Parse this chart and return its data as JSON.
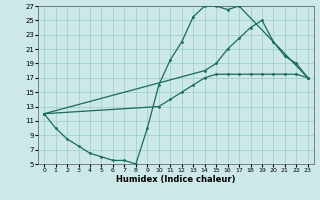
{
  "xlabel": "Humidex (Indice chaleur)",
  "ylabel": "",
  "xlim": [
    -0.5,
    23.5
  ],
  "ylim": [
    5,
    27
  ],
  "xticks": [
    0,
    1,
    2,
    3,
    4,
    5,
    6,
    7,
    8,
    9,
    10,
    11,
    12,
    13,
    14,
    15,
    16,
    17,
    18,
    19,
    20,
    21,
    22,
    23
  ],
  "yticks": [
    5,
    7,
    9,
    11,
    13,
    15,
    17,
    19,
    21,
    23,
    25,
    27
  ],
  "bg_color": "#cce8e8",
  "grid_color": "#99cccc",
  "line_color": "#1a6b5a",
  "curve1_x": [
    0,
    1,
    2,
    3,
    4,
    5,
    6,
    7,
    8,
    9,
    10,
    11,
    12,
    13,
    14,
    15,
    16,
    17,
    23
  ],
  "curve1_y": [
    12,
    10,
    8.5,
    7.5,
    6.5,
    6,
    5.5,
    5.5,
    5,
    10,
    16,
    19.5,
    22,
    25.5,
    27,
    27,
    26.5,
    27,
    17
  ],
  "curve2_x": [
    0,
    14,
    15,
    16,
    17,
    18,
    19,
    20,
    21,
    22,
    23
  ],
  "curve2_y": [
    12,
    18,
    19,
    21,
    22.5,
    24,
    25,
    22,
    20,
    19,
    17
  ],
  "curve3_x": [
    0,
    10,
    11,
    12,
    13,
    14,
    15,
    16,
    17,
    18,
    19,
    20,
    21,
    22,
    23
  ],
  "curve3_y": [
    12,
    13,
    14,
    15,
    16,
    17,
    17.5,
    17.5,
    17.5,
    17.5,
    17.5,
    17.5,
    17.5,
    17.5,
    17
  ]
}
